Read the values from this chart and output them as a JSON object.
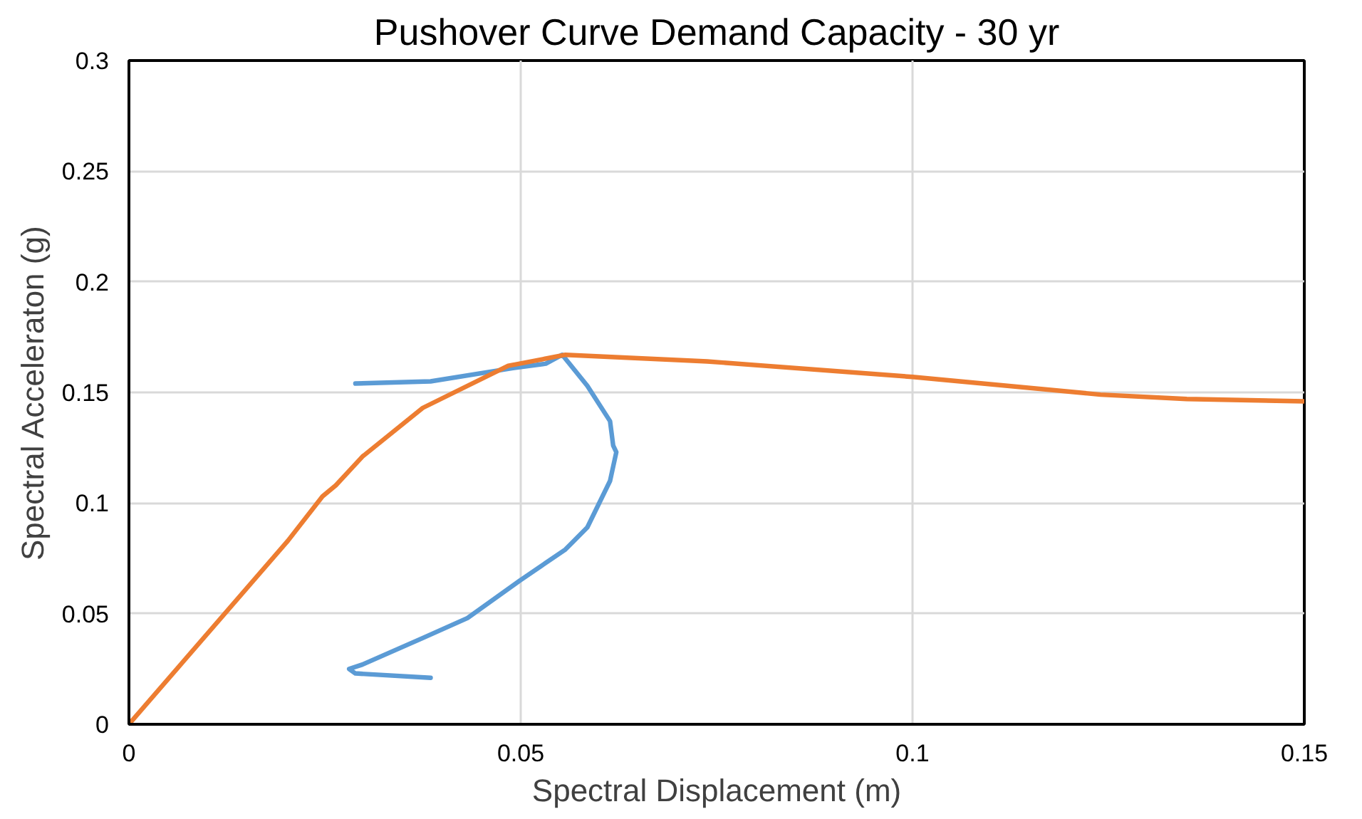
{
  "chart_data": {
    "type": "line",
    "title": "Pushover Curve Demand Capacity - 30 yr",
    "xlabel": "Spectral Displacement (m)",
    "ylabel": "Spectral Acceleraton (g)",
    "xlim": [
      0,
      0.15
    ],
    "ylim": [
      0,
      0.3
    ],
    "xticks": [
      0,
      0.05,
      0.1,
      0.15
    ],
    "yticks": [
      0,
      0.05,
      0.1,
      0.15,
      0.2,
      0.25,
      0.3
    ],
    "grid": true,
    "line_style": "solid",
    "series": [
      {
        "color": "#5b9bd5",
        "x": [
          0.0289,
          0.0385,
          0.049,
          0.0532,
          0.0553,
          0.0585,
          0.0614,
          0.0618,
          0.0622,
          0.0614,
          0.0585,
          0.0557,
          0.0499,
          0.0432,
          0.0375,
          0.0298,
          0.0281,
          0.0289,
          0.0385
        ],
        "values": [
          0.154,
          0.155,
          0.161,
          0.163,
          0.167,
          0.153,
          0.137,
          0.126,
          0.123,
          0.11,
          0.089,
          0.079,
          0.065,
          0.048,
          0.039,
          0.027,
          0.025,
          0.023,
          0.021
        ]
      },
      {
        "color": "#ed7d31",
        "x": [
          0,
          0.0203,
          0.0247,
          0.0264,
          0.0298,
          0.0375,
          0.0484,
          0.0557,
          0.0738,
          0.1,
          0.124,
          0.135,
          0.15
        ],
        "values": [
          0,
          0.083,
          0.103,
          0.108,
          0.121,
          0.143,
          0.162,
          0.167,
          0.164,
          0.157,
          0.149,
          0.147,
          0.146
        ]
      }
    ]
  }
}
